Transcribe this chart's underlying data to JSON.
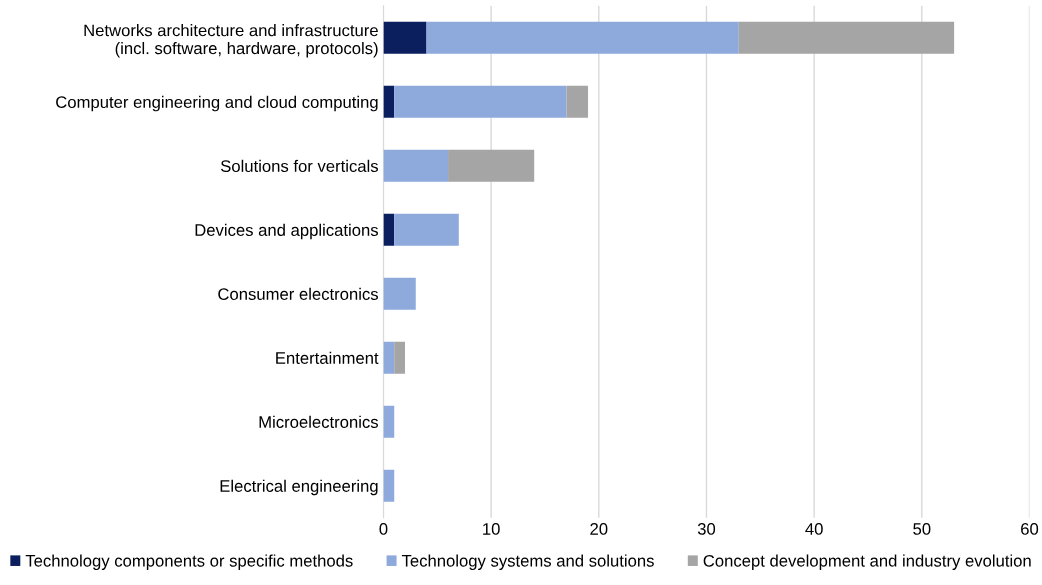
{
  "chart_data": {
    "type": "bar",
    "orientation": "horizontal",
    "stacked": true,
    "categories": [
      "Networks architecture and infrastructure\n(incl. software, hardware, protocols)",
      "Computer engineering and cloud computing",
      "Solutions for verticals",
      "Devices and applications",
      "Consumer electronics",
      "Entertainment",
      "Microelectronics",
      "Electrical engineering"
    ],
    "series": [
      {
        "name": "Technology components or specific methods",
        "color": "#0b1f5e",
        "values": [
          4,
          1,
          0,
          1,
          0,
          0,
          0,
          0
        ]
      },
      {
        "name": "Technology systems and solutions",
        "color": "#8eaadc",
        "values": [
          29,
          16,
          6,
          6,
          3,
          1,
          1,
          1
        ]
      },
      {
        "name": "Concept development and industry evolution",
        "color": "#a5a5a5",
        "values": [
          20,
          2,
          8,
          0,
          0,
          1,
          0,
          0
        ]
      }
    ],
    "xlim": [
      0,
      60
    ],
    "xticks": [
      0,
      10,
      20,
      30,
      40,
      50,
      60
    ],
    "grid": "x",
    "legend": "bottom"
  }
}
